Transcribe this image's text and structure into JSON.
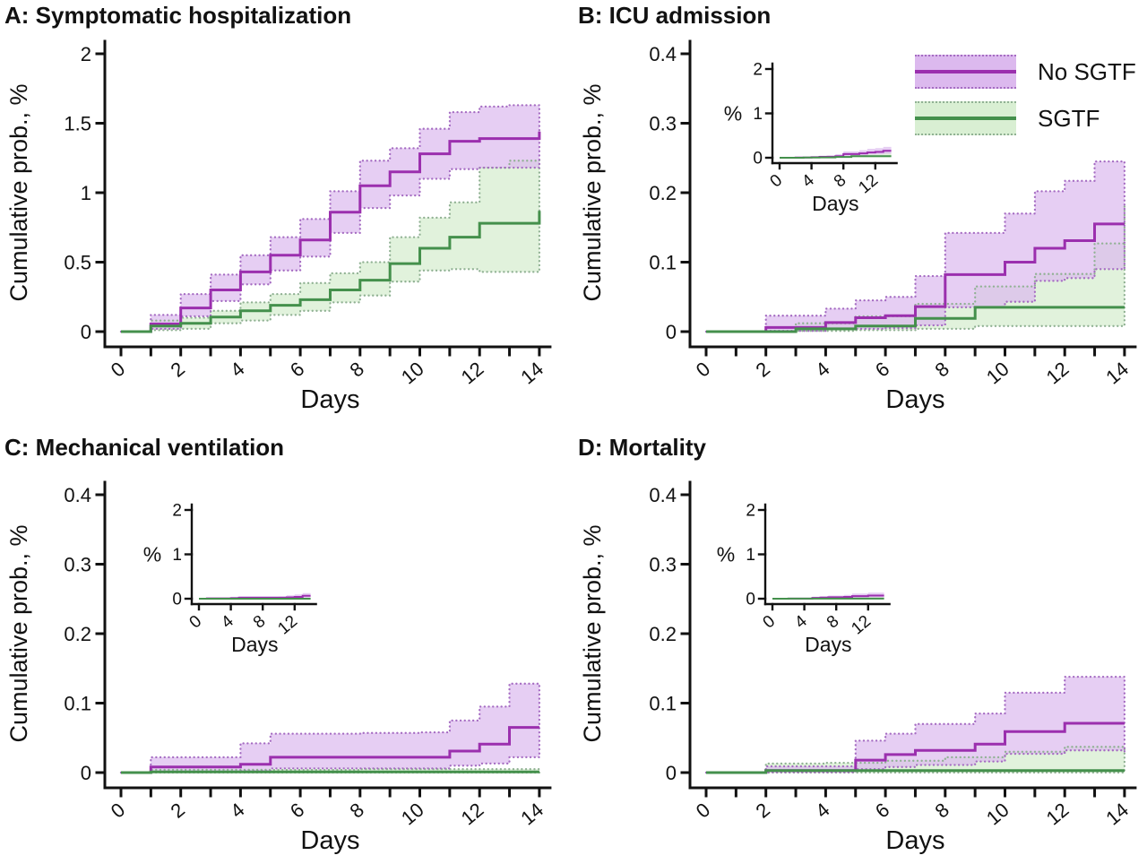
{
  "figure": {
    "ylabel": "Cumulative prob., %",
    "xlabel": "Days"
  },
  "legend": {
    "items": [
      {
        "label": "No SGTF",
        "key": "no_sgtf"
      },
      {
        "label": "SGTF",
        "key": "sgtf"
      }
    ]
  },
  "colors": {
    "no_sgtf_line": "#9b2fae",
    "no_sgtf_band": "#dcb9ee",
    "no_sgtf_dots": "#a56cc2",
    "sgtf_line": "#44904c",
    "sgtf_band": "#d9efd3",
    "sgtf_dots": "#90b193",
    "axis": "#111111",
    "text": "#111111"
  },
  "chart_data": [
    {
      "id": "A",
      "type": "line",
      "title": "A: Symptomatic hospitalization",
      "xlabel": "Days",
      "ylabel": "Cumulative prob., %",
      "xlim": [
        0,
        14
      ],
      "ylim": [
        0,
        2
      ],
      "yticks": [
        0,
        0.5,
        1,
        1.5,
        2
      ],
      "ytick_labels": [
        "0",
        "0.5",
        "1",
        "1.5",
        "2"
      ],
      "xticks": [
        0,
        1,
        2,
        3,
        4,
        5,
        6,
        7,
        8,
        9,
        10,
        11,
        12,
        13,
        14
      ],
      "xtick_labels_at": [
        0,
        2,
        4,
        6,
        8,
        10,
        12,
        14
      ],
      "grid": false,
      "x": [
        0,
        1,
        2,
        3,
        4,
        5,
        6,
        7,
        8,
        9,
        10,
        11,
        12,
        13,
        14
      ],
      "series": [
        {
          "name": "No SGTF",
          "values": [
            0,
            0.055,
            0.17,
            0.3,
            0.43,
            0.55,
            0.66,
            0.86,
            1.05,
            1.15,
            1.28,
            1.37,
            1.39,
            1.39,
            1.44
          ],
          "ci_upper": [
            0,
            0.12,
            0.27,
            0.41,
            0.55,
            0.68,
            0.81,
            1.01,
            1.23,
            1.32,
            1.46,
            1.58,
            1.62,
            1.63,
            1.63
          ],
          "ci_lower": [
            0,
            0.02,
            0.11,
            0.22,
            0.34,
            0.44,
            0.54,
            0.71,
            0.89,
            0.98,
            1.1,
            1.17,
            1.18,
            1.18,
            1.21
          ]
        },
        {
          "name": "SGTF",
          "values": [
            0,
            0.04,
            0.06,
            0.105,
            0.15,
            0.19,
            0.23,
            0.3,
            0.37,
            0.49,
            0.6,
            0.68,
            0.78,
            0.78,
            0.87
          ],
          "ci_upper": [
            0,
            0.08,
            0.1,
            0.15,
            0.21,
            0.27,
            0.35,
            0.42,
            0.5,
            0.68,
            0.82,
            0.93,
            1.18,
            1.23,
            1.25
          ],
          "ci_lower": [
            0,
            0.01,
            0.02,
            0.06,
            0.08,
            0.12,
            0.15,
            0.21,
            0.26,
            0.36,
            0.44,
            0.45,
            0.43,
            0.43,
            0.44
          ]
        }
      ],
      "inset": null
    },
    {
      "id": "B",
      "type": "line",
      "title": "B: ICU admission",
      "xlabel": "Days",
      "ylabel": "Cumulative prob., %",
      "xlim": [
        0,
        14
      ],
      "ylim": [
        0,
        0.4
      ],
      "yticks": [
        0,
        0.1,
        0.2,
        0.3,
        0.4
      ],
      "ytick_labels": [
        "0",
        "0.1",
        "0.2",
        "0.3",
        "0.4"
      ],
      "xticks": [
        0,
        1,
        2,
        3,
        4,
        5,
        6,
        7,
        8,
        9,
        10,
        11,
        12,
        13,
        14
      ],
      "xtick_labels_at": [
        0,
        2,
        4,
        6,
        8,
        10,
        12,
        14
      ],
      "grid": false,
      "x": [
        0,
        1,
        2,
        3,
        4,
        5,
        6,
        7,
        8,
        9,
        10,
        11,
        12,
        13,
        14
      ],
      "series": [
        {
          "name": "No SGTF",
          "values": [
            0,
            0,
            0.006,
            0.006,
            0.013,
            0.02,
            0.023,
            0.036,
            0.082,
            0.082,
            0.1,
            0.12,
            0.131,
            0.155,
            0.155
          ],
          "ci_upper": [
            0,
            0,
            0.023,
            0.023,
            0.033,
            0.045,
            0.05,
            0.08,
            0.142,
            0.142,
            0.17,
            0.202,
            0.217,
            0.245,
            0.245
          ],
          "ci_lower": [
            0,
            0,
            0.001,
            0.001,
            0.004,
            0.004,
            0.005,
            0.009,
            0.035,
            0.035,
            0.043,
            0.073,
            0.077,
            0.09,
            0.09
          ]
        },
        {
          "name": "SGTF",
          "values": [
            0,
            0,
            0,
            0.004,
            0.004,
            0.008,
            0.008,
            0.019,
            0.019,
            0.035,
            0.035,
            0.035,
            0.035,
            0.035,
            0.035
          ],
          "ci_upper": [
            0,
            0,
            0,
            0.012,
            0.012,
            0.022,
            0.022,
            0.04,
            0.04,
            0.065,
            0.065,
            0.083,
            0.083,
            0.127,
            0.18
          ],
          "ci_lower": [
            0,
            0,
            0,
            0.001,
            0.001,
            0.002,
            0.002,
            0.004,
            0.004,
            0.008,
            0.008,
            0.008,
            0.008,
            0.008,
            0.008
          ]
        }
      ],
      "inset": {
        "ylabel": "%",
        "xlabel": "Days",
        "ylim": [
          0,
          2
        ],
        "yticks": [
          0,
          1,
          2
        ],
        "ytick_labels": [
          "0",
          "1",
          "2"
        ],
        "xticks": [
          0,
          4,
          8,
          12
        ]
      }
    },
    {
      "id": "C",
      "type": "line",
      "title": "C: Mechanical ventilation",
      "xlabel": "Days",
      "ylabel": "Cumulative prob., %",
      "xlim": [
        0,
        14
      ],
      "ylim": [
        0,
        0.4
      ],
      "yticks": [
        0,
        0.1,
        0.2,
        0.3,
        0.4
      ],
      "ytick_labels": [
        "0",
        "0.1",
        "0.2",
        "0.3",
        "0.4"
      ],
      "xticks": [
        0,
        1,
        2,
        3,
        4,
        5,
        6,
        7,
        8,
        9,
        10,
        11,
        12,
        13,
        14
      ],
      "xtick_labels_at": [
        0,
        2,
        4,
        6,
        8,
        10,
        12,
        14
      ],
      "grid": false,
      "x": [
        0,
        1,
        2,
        3,
        4,
        5,
        6,
        7,
        8,
        9,
        10,
        11,
        12,
        13,
        14
      ],
      "series": [
        {
          "name": "No SGTF",
          "values": [
            0,
            0.008,
            0.008,
            0.008,
            0.012,
            0.022,
            0.022,
            0.022,
            0.022,
            0.022,
            0.022,
            0.031,
            0.041,
            0.065,
            0.065
          ],
          "ci_upper": [
            0,
            0.022,
            0.022,
            0.022,
            0.042,
            0.056,
            0.056,
            0.056,
            0.057,
            0.057,
            0.058,
            0.075,
            0.095,
            0.128,
            0.128
          ],
          "ci_lower": [
            0,
            0.001,
            0.001,
            0.001,
            0.002,
            0.006,
            0.006,
            0.006,
            0.006,
            0.006,
            0.006,
            0.01,
            0.013,
            0.022,
            0.022
          ]
        },
        {
          "name": "SGTF",
          "values": [
            0,
            0.001,
            0.001,
            0.001,
            0.001,
            0.001,
            0.001,
            0.001,
            0.001,
            0.001,
            0.001,
            0.001,
            0.001,
            0.001,
            0.001
          ],
          "ci_upper": [
            0,
            0.004,
            0.004,
            0.004,
            0.004,
            0.004,
            0.004,
            0.004,
            0.005,
            0.005,
            0.005,
            0.005,
            0.005,
            0.005,
            0.005
          ],
          "ci_lower": [
            0,
            0,
            0,
            0,
            0,
            0,
            0,
            0,
            0,
            0,
            0,
            0,
            0,
            0,
            0
          ]
        }
      ],
      "inset": {
        "ylabel": "%",
        "xlabel": "Days",
        "ylim": [
          0,
          2
        ],
        "yticks": [
          0,
          1,
          2
        ],
        "ytick_labels": [
          "0",
          "1",
          "2"
        ],
        "xticks": [
          0,
          4,
          8,
          12
        ]
      }
    },
    {
      "id": "D",
      "type": "line",
      "title": "D: Mortality",
      "xlabel": "Days",
      "ylabel": "Cumulative prob., %",
      "xlim": [
        0,
        14
      ],
      "ylim": [
        0,
        0.4
      ],
      "yticks": [
        0,
        0.1,
        0.2,
        0.3,
        0.4
      ],
      "ytick_labels": [
        "0",
        "0.1",
        "0.2",
        "0.3",
        "0.4"
      ],
      "xticks": [
        0,
        1,
        2,
        3,
        4,
        5,
        6,
        7,
        8,
        9,
        10,
        11,
        12,
        13,
        14
      ],
      "xtick_labels_at": [
        0,
        2,
        4,
        6,
        8,
        10,
        12,
        14
      ],
      "grid": false,
      "x": [
        0,
        1,
        2,
        3,
        4,
        5,
        6,
        7,
        8,
        9,
        10,
        11,
        12,
        13,
        14
      ],
      "series": [
        {
          "name": "No SGTF",
          "values": [
            0,
            0,
            0.003,
            0.003,
            0.003,
            0.018,
            0.026,
            0.032,
            0.032,
            0.041,
            0.059,
            0.059,
            0.071,
            0.071,
            0.071
          ],
          "ci_upper": [
            0,
            0,
            0.009,
            0.009,
            0.009,
            0.046,
            0.056,
            0.07,
            0.07,
            0.085,
            0.115,
            0.115,
            0.138,
            0.138,
            0.138
          ],
          "ci_lower": [
            0,
            0,
            0.0005,
            0.0005,
            0.0005,
            0.005,
            0.008,
            0.011,
            0.011,
            0.016,
            0.027,
            0.027,
            0.032,
            0.032,
            0.03
          ]
        },
        {
          "name": "SGTF",
          "values": [
            0,
            0,
            0.003,
            0.003,
            0.003,
            0.003,
            0.003,
            0.003,
            0.003,
            0.003,
            0.003,
            0.003,
            0.003,
            0.003,
            0.003
          ],
          "ci_upper": [
            0,
            0,
            0.013,
            0.013,
            0.014,
            0.014,
            0.017,
            0.017,
            0.022,
            0.022,
            0.03,
            0.03,
            0.037,
            0.037,
            0.037
          ],
          "ci_lower": [
            0,
            0,
            0,
            0,
            0,
            0,
            0,
            0,
            0,
            0,
            0,
            0,
            0,
            0,
            0
          ]
        }
      ],
      "inset": {
        "ylabel": "%",
        "xlabel": "Days",
        "ylim": [
          0,
          2
        ],
        "yticks": [
          0,
          1,
          2
        ],
        "ytick_labels": [
          "0",
          "1",
          "2"
        ],
        "xticks": [
          0,
          4,
          8,
          12
        ]
      }
    }
  ]
}
